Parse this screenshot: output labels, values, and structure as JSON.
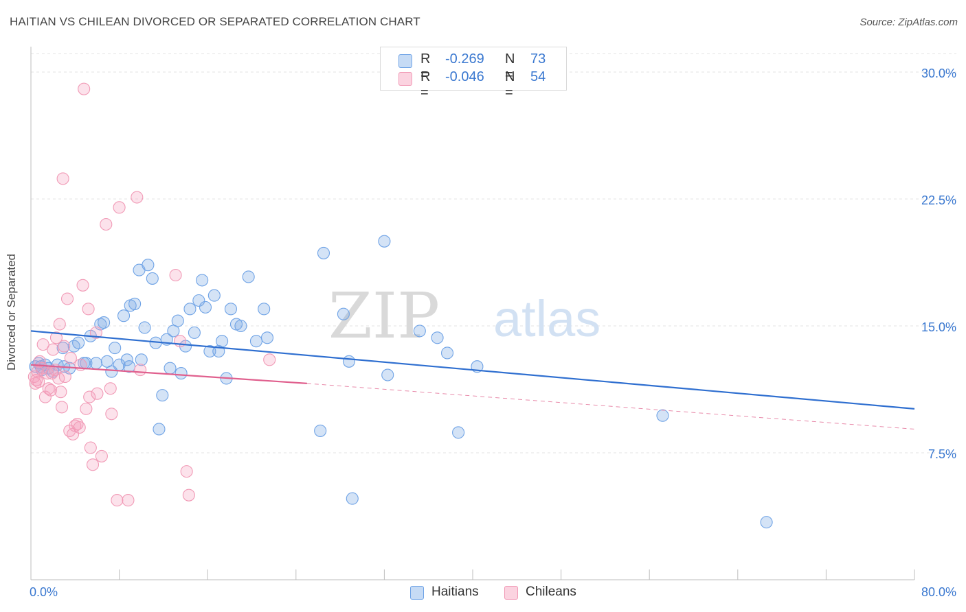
{
  "header": {
    "title": "HAITIAN VS CHILEAN DIVORCED OR SEPARATED CORRELATION CHART",
    "source": "Source: ZipAtlas.com"
  },
  "watermark": {
    "zip": "ZIP",
    "atlas": "atlas"
  },
  "legend": {
    "rows": [
      {
        "r_label": "R =",
        "r_value": "-0.269",
        "n_label": "N =",
        "n_value": "73",
        "color": "#6fa3e6"
      },
      {
        "r_label": "R =",
        "r_value": "-0.046",
        "n_label": "N =",
        "n_value": "54",
        "color": "#f19ab6"
      }
    ]
  },
  "bottom_legend": {
    "items": [
      {
        "label": "Haitians",
        "color": "#6fa3e6"
      },
      {
        "label": "Chileans",
        "color": "#f19ab6"
      }
    ]
  },
  "chart_data": {
    "type": "scatter",
    "title": "HAITIAN VS CHILEAN DIVORCED OR SEPARATED CORRELATION CHART",
    "xlabel": "",
    "ylabel": "Divorced or Separated",
    "xlim": [
      0,
      80
    ],
    "ylim": [
      0,
      31.5
    ],
    "x_tick_labels": [
      "0.0%",
      "80.0%"
    ],
    "y_ticks": [
      7.5,
      15.0,
      22.5,
      30.0
    ],
    "y_tick_labels": [
      "7.5%",
      "15.0%",
      "22.5%",
      "30.0%"
    ],
    "grid": true,
    "legend_position": "top-center",
    "series": [
      {
        "name": "Haitians",
        "color": "#6fa3e6",
        "trend": {
          "x": [
            0,
            80
          ],
          "y": [
            14.7,
            10.1
          ],
          "style": "solid"
        },
        "points": [
          [
            0.4,
            12.6
          ],
          [
            0.7,
            12.8
          ],
          [
            1.0,
            12.4
          ],
          [
            1.3,
            12.7
          ],
          [
            1.6,
            12.5
          ],
          [
            2.0,
            12.3
          ],
          [
            2.4,
            12.7
          ],
          [
            2.9,
            13.7
          ],
          [
            3.5,
            12.5
          ],
          [
            3.9,
            13.8
          ],
          [
            4.3,
            14.0
          ],
          [
            4.8,
            12.8
          ],
          [
            5.4,
            14.4
          ],
          [
            5.9,
            12.8
          ],
          [
            6.3,
            15.1
          ],
          [
            6.6,
            15.2
          ],
          [
            6.9,
            12.9
          ],
          [
            7.3,
            12.3
          ],
          [
            7.6,
            13.7
          ],
          [
            8.0,
            12.7
          ],
          [
            8.4,
            15.6
          ],
          [
            8.7,
            13.0
          ],
          [
            9.0,
            16.2
          ],
          [
            9.4,
            16.3
          ],
          [
            9.8,
            18.3
          ],
          [
            10.0,
            13.0
          ],
          [
            10.3,
            14.9
          ],
          [
            10.6,
            18.6
          ],
          [
            11.0,
            17.8
          ],
          [
            11.3,
            14.0
          ],
          [
            11.6,
            8.9
          ],
          [
            11.9,
            10.9
          ],
          [
            12.3,
            14.2
          ],
          [
            12.6,
            12.5
          ],
          [
            12.9,
            14.7
          ],
          [
            13.3,
            15.3
          ],
          [
            13.6,
            12.2
          ],
          [
            14.0,
            13.8
          ],
          [
            14.4,
            16.0
          ],
          [
            14.8,
            14.6
          ],
          [
            15.2,
            16.5
          ],
          [
            15.5,
            17.7
          ],
          [
            15.8,
            16.1
          ],
          [
            16.2,
            13.5
          ],
          [
            16.6,
            16.8
          ],
          [
            17.0,
            13.5
          ],
          [
            17.3,
            14.1
          ],
          [
            17.7,
            11.9
          ],
          [
            18.1,
            16.0
          ],
          [
            18.6,
            15.1
          ],
          [
            19.0,
            15.0
          ],
          [
            19.7,
            17.9
          ],
          [
            20.4,
            14.1
          ],
          [
            21.1,
            16.0
          ],
          [
            21.4,
            14.3
          ],
          [
            26.2,
            8.8
          ],
          [
            26.5,
            19.3
          ],
          [
            28.3,
            15.7
          ],
          [
            28.8,
            12.9
          ],
          [
            29.1,
            4.8
          ],
          [
            32.0,
            20.0
          ],
          [
            32.3,
            12.1
          ],
          [
            35.2,
            14.7
          ],
          [
            36.8,
            14.3
          ],
          [
            37.7,
            13.4
          ],
          [
            38.7,
            8.7
          ],
          [
            40.4,
            12.6
          ],
          [
            57.2,
            9.7
          ],
          [
            66.6,
            3.4
          ],
          [
            0.9,
            12.6
          ],
          [
            3.0,
            12.6
          ],
          [
            5.0,
            12.8
          ],
          [
            8.9,
            12.6
          ]
        ]
      },
      {
        "name": "Chileans",
        "color": "#f19ab6",
        "trend": {
          "x": [
            0,
            25
          ],
          "y": [
            12.7,
            11.6
          ],
          "style": "solid",
          "extended_x": [
            25,
            80
          ],
          "extended_y": [
            11.6,
            8.9
          ]
        },
        "points": [
          [
            0.3,
            12.0
          ],
          [
            0.4,
            11.6
          ],
          [
            0.5,
            11.8
          ],
          [
            0.6,
            12.3
          ],
          [
            0.8,
            12.9
          ],
          [
            1.0,
            12.5
          ],
          [
            1.1,
            13.9
          ],
          [
            1.3,
            10.8
          ],
          [
            1.5,
            12.2
          ],
          [
            1.6,
            11.3
          ],
          [
            1.8,
            11.2
          ],
          [
            1.9,
            12.2
          ],
          [
            2.0,
            13.6
          ],
          [
            2.2,
            12.4
          ],
          [
            2.3,
            14.3
          ],
          [
            2.5,
            11.9
          ],
          [
            2.6,
            15.1
          ],
          [
            2.7,
            11.1
          ],
          [
            2.8,
            10.2
          ],
          [
            2.9,
            23.7
          ],
          [
            3.0,
            13.8
          ],
          [
            3.1,
            12.0
          ],
          [
            3.3,
            16.6
          ],
          [
            3.5,
            8.8
          ],
          [
            3.6,
            13.1
          ],
          [
            3.8,
            8.6
          ],
          [
            4.0,
            9.1
          ],
          [
            4.2,
            9.2
          ],
          [
            4.4,
            9.0
          ],
          [
            4.5,
            12.7
          ],
          [
            4.7,
            17.4
          ],
          [
            4.8,
            29.0
          ],
          [
            5.0,
            10.1
          ],
          [
            5.2,
            16.0
          ],
          [
            5.3,
            10.8
          ],
          [
            5.4,
            7.8
          ],
          [
            5.6,
            6.8
          ],
          [
            5.9,
            14.6
          ],
          [
            6.0,
            11.0
          ],
          [
            6.4,
            7.3
          ],
          [
            6.8,
            21.0
          ],
          [
            7.2,
            11.3
          ],
          [
            7.3,
            9.8
          ],
          [
            7.8,
            4.7
          ],
          [
            8.0,
            22.0
          ],
          [
            8.8,
            4.7
          ],
          [
            9.6,
            22.6
          ],
          [
            9.9,
            12.4
          ],
          [
            13.1,
            18.0
          ],
          [
            13.5,
            14.1
          ],
          [
            14.1,
            6.4
          ],
          [
            14.3,
            5.0
          ],
          [
            21.6,
            13.0
          ],
          [
            0.7,
            11.7
          ]
        ]
      }
    ]
  }
}
